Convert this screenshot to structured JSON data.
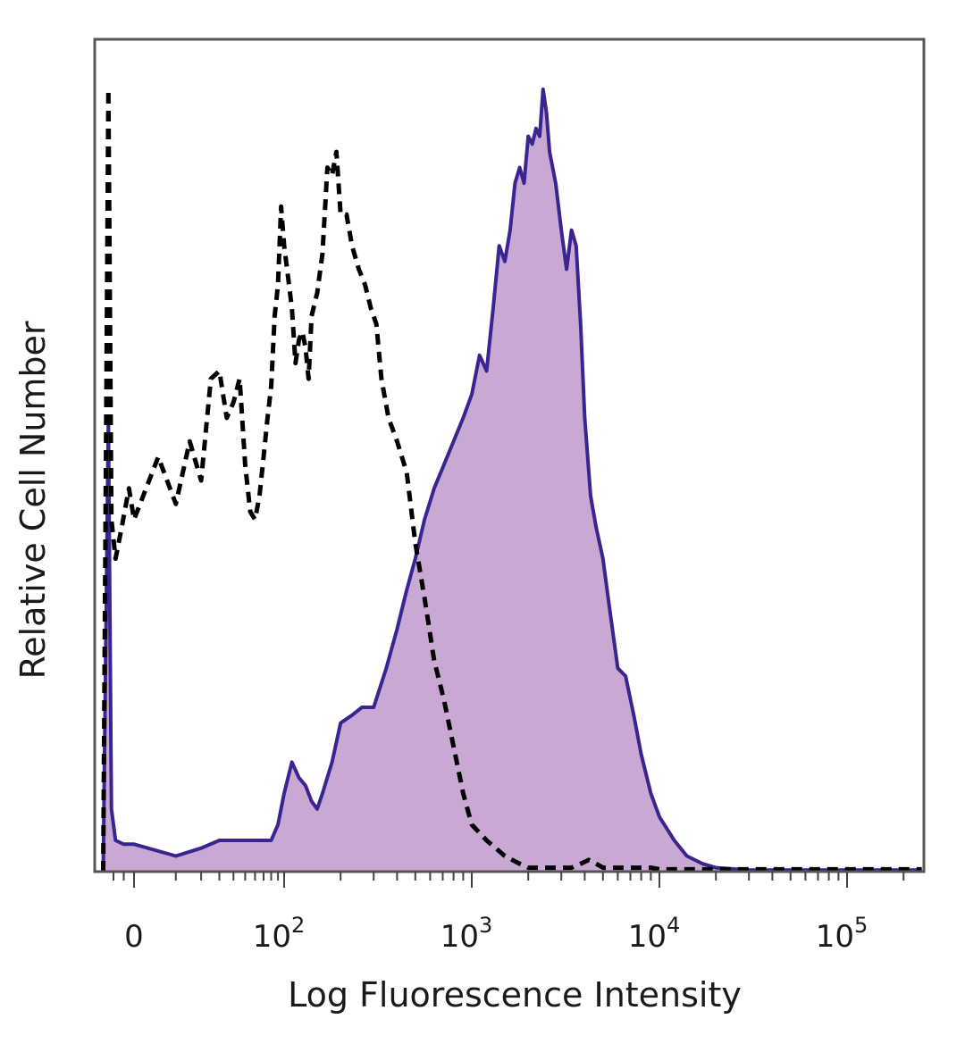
{
  "chart_data": {
    "type": "area",
    "xlabel": "Log Fluorescence Intensity",
    "ylabel": "Relative Cell Number",
    "x_scale": "biexponential",
    "x_ticks": [
      {
        "value": 0,
        "label": "0"
      },
      {
        "value": 100,
        "label": "10",
        "exp": "2"
      },
      {
        "value": 1000,
        "label": "10",
        "exp": "3"
      },
      {
        "value": 10000,
        "label": "10",
        "exp": "4"
      },
      {
        "value": 100000,
        "label": "10",
        "exp": "5"
      }
    ],
    "xlim": [
      -30,
      250000
    ],
    "ylim": [
      0,
      100
    ],
    "grid": false,
    "colors": {
      "stained_line": "#3a2590",
      "stained_fill": "#c9a9d3",
      "control_line": "#000000",
      "frame": "#555555"
    },
    "series": [
      {
        "style": "filled-solid",
        "x": [
          -30,
          -25,
          -22,
          -18,
          -10,
          0,
          10,
          20,
          30,
          40,
          50,
          60,
          70,
          80,
          90,
          100,
          110,
          120,
          130,
          140,
          150,
          160,
          180,
          200,
          230,
          260,
          300,
          350,
          400,
          450,
          500,
          560,
          630,
          710,
          800,
          900,
          1000,
          1100,
          1200,
          1300,
          1400,
          1500,
          1600,
          1700,
          1800,
          1900,
          2000,
          2100,
          2200,
          2300,
          2400,
          2500,
          2600,
          2800,
          3000,
          3200,
          3400,
          3600,
          3800,
          4000,
          4300,
          4600,
          5000,
          5400,
          6000,
          6600,
          7300,
          8000,
          9000,
          10000,
          12000,
          14000,
          17000,
          20000,
          30000,
          50000,
          100000,
          250000
        ],
        "y": [
          0,
          58,
          8,
          4,
          3.5,
          3.5,
          2,
          3,
          4,
          4,
          4,
          4,
          4,
          4,
          6,
          10,
          14,
          12,
          11,
          9,
          8,
          10,
          14,
          19,
          20,
          21,
          21,
          26,
          31,
          36,
          40,
          45,
          49,
          52,
          55,
          58,
          61,
          66,
          64,
          72,
          80,
          78,
          82,
          88,
          90,
          88,
          94,
          93,
          95,
          94,
          100,
          97,
          92,
          88,
          82,
          77,
          82,
          80,
          70,
          58,
          48,
          44,
          40,
          34,
          26,
          25,
          20,
          15,
          10,
          7,
          4,
          2,
          1,
          0.5,
          0.2,
          0.2,
          0.2,
          0.2
        ]
      },
      {
        "style": "dashed",
        "x": [
          -30,
          -25,
          -22,
          -18,
          -12,
          -5,
          0,
          5,
          10,
          15,
          20,
          25,
          30,
          35,
          40,
          45,
          50,
          55,
          60,
          65,
          70,
          75,
          80,
          85,
          90,
          95,
          100,
          105,
          110,
          115,
          120,
          125,
          130,
          135,
          140,
          150,
          160,
          170,
          180,
          190,
          200,
          215,
          230,
          250,
          270,
          290,
          310,
          330,
          360,
          400,
          450,
          500,
          560,
          630,
          710,
          800,
          900,
          1000,
          1200,
          1500,
          1800,
          2000,
          2300,
          2600,
          3000,
          3400,
          3800,
          4200,
          4600,
          5000,
          5500,
          6000,
          6600,
          7300,
          8000,
          9000,
          10000,
          15000,
          30000,
          100000,
          250000
        ],
        "y": [
          0,
          100,
          45,
          40,
          44,
          49,
          45,
          53,
          47,
          55,
          50,
          63,
          64,
          58,
          60,
          63,
          52,
          46,
          45,
          48,
          53,
          58,
          62,
          71,
          75,
          85,
          80,
          76,
          72,
          65,
          68,
          69,
          67,
          63,
          71,
          74,
          79,
          90,
          89,
          92,
          84,
          84,
          80,
          77,
          75,
          72,
          70,
          63,
          58,
          55,
          51,
          42,
          35,
          27,
          22,
          16,
          10,
          6,
          4,
          2,
          1,
          0.5,
          0.5,
          0.5,
          0.5,
          0.5,
          1,
          1.5,
          1,
          0.5,
          0.5,
          0.5,
          0.5,
          0.5,
          0.5,
          0.5,
          0.3,
          0.3,
          0.3,
          0.3,
          0.3
        ]
      }
    ]
  }
}
